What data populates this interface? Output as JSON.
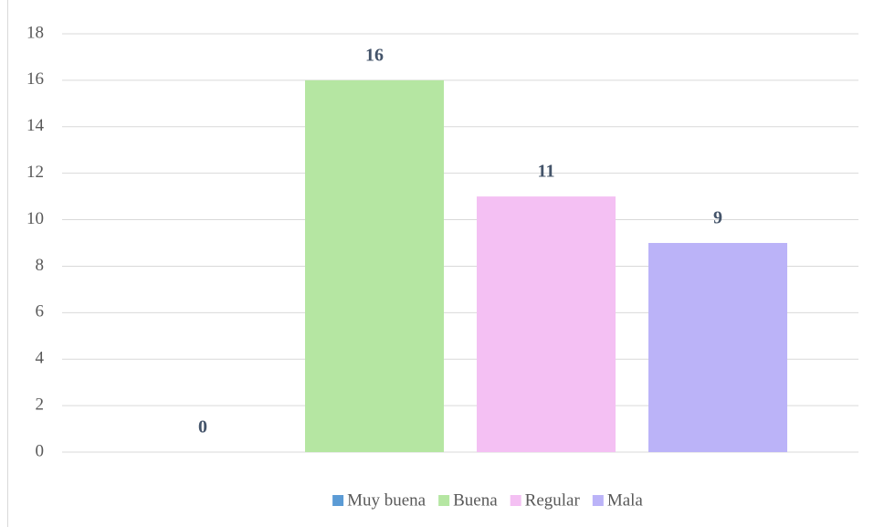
{
  "chart_data": {
    "type": "bar",
    "series": [
      {
        "name": "Muy buena",
        "color": "#5b9bd5",
        "values": [
          0
        ]
      },
      {
        "name": "Buena",
        "color": "#b5e6a2",
        "values": [
          16
        ]
      },
      {
        "name": "Regular",
        "color": "#f4c0f3",
        "values": [
          11
        ]
      },
      {
        "name": "Mala",
        "color": "#bbb3f8",
        "values": [
          9
        ]
      }
    ],
    "ylim": [
      0,
      18
    ],
    "yticks": [
      0,
      2,
      4,
      6,
      8,
      10,
      12,
      14,
      16,
      18
    ],
    "grid": true,
    "legend": "bottom"
  }
}
